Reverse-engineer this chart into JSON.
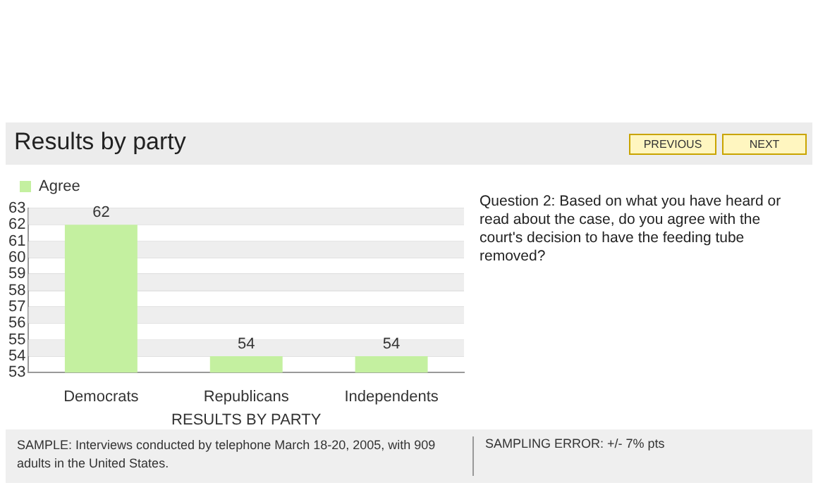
{
  "chart_data": {
    "type": "bar",
    "title": "Results by party",
    "xlabel": "RESULTS BY PARTY",
    "categories": [
      "Democrats",
      "Republicans",
      "Independents"
    ],
    "series": [
      {
        "name": "Agree",
        "color": "#c4f0a0",
        "values": [
          62,
          54,
          54
        ]
      }
    ],
    "ylim": [
      53,
      63
    ],
    "yticks": [
      53,
      54,
      55,
      56,
      57,
      58,
      59,
      60,
      61,
      62,
      63
    ],
    "grid": "y",
    "legend": "top left",
    "data_labels": true,
    "annotations": [
      "Question 2: Based on what you have heard or read about the case, do you agree with the court's decision to have the feeding tube removed?",
      "SAMPLE: Interviews conducted by telephone March 18-20, 2005, with 909 adults in the United States.",
      "SAMPLING ERROR: +/- 7% pts",
      "PREVIOUS",
      "NEXT"
    ]
  }
}
